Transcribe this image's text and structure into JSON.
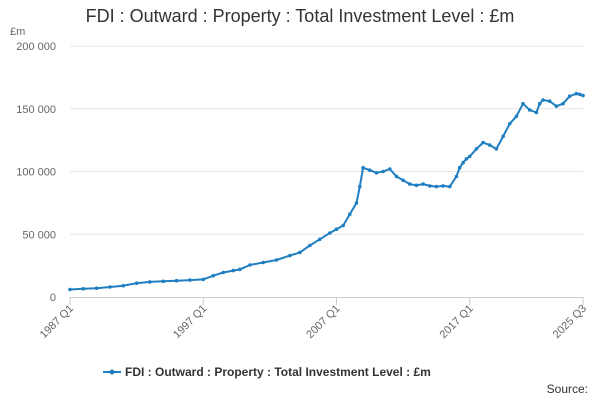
{
  "title": "FDI : Outward : Property : Total Investment Level : £m",
  "unit": "£m",
  "source": "Source:",
  "colors": {
    "series": "#1f7fc1",
    "grid": "#e6e6e6",
    "axis": "#666666"
  },
  "chart_data": {
    "type": "line",
    "title": "FDI : Outward : Property : Total Investment Level : £m",
    "ylabel": "£m",
    "xlabel": "",
    "ylim": [
      0,
      200000
    ],
    "yticks": [
      0,
      50000,
      100000,
      150000,
      200000
    ],
    "ytick_labels": [
      "0",
      "50 000",
      "100 000",
      "150 000",
      "200 000"
    ],
    "xlim": [
      1987.0,
      2025.5
    ],
    "xticks": [
      1987.0,
      1997.0,
      2007.0,
      2017.0,
      2025.5
    ],
    "xtick_labels": [
      "1987 Q1",
      "1997 Q1",
      "2007 Q1",
      "2017 Q1",
      "2025 Q3"
    ],
    "grid": true,
    "legend": "bottom-center",
    "series": [
      {
        "name": "FDI : Outward : Property : Total Investment Level : £m",
        "x": [
          1987.0,
          1988.0,
          1989.0,
          1990.0,
          1991.0,
          1992.0,
          1993.0,
          1994.0,
          1995.0,
          1996.0,
          1997.0,
          1997.75,
          1998.5,
          1999.25,
          1999.75,
          2000.5,
          2001.5,
          2002.5,
          2003.5,
          2004.25,
          2005.0,
          2005.75,
          2006.5,
          2007.0,
          2007.5,
          2008.0,
          2008.5,
          2008.75,
          2009.0,
          2009.5,
          2010.0,
          2010.5,
          2011.0,
          2011.5,
          2012.0,
          2012.5,
          2013.0,
          2013.5,
          2014.0,
          2014.5,
          2015.0,
          2015.5,
          2016.0,
          2016.25,
          2016.5,
          2016.75,
          2017.0,
          2017.5,
          2018.0,
          2018.5,
          2019.0,
          2019.5,
          2020.0,
          2020.5,
          2021.0,
          2021.5,
          2022.0,
          2022.25,
          2022.5,
          2023.0,
          2023.5,
          2024.0,
          2024.5,
          2025.0,
          2025.25,
          2025.5
        ],
        "y": [
          6000,
          6500,
          7000,
          8000,
          9000,
          11000,
          12000,
          12500,
          13000,
          13500,
          14000,
          17000,
          19500,
          21000,
          22000,
          25500,
          27500,
          29500,
          33000,
          35500,
          41000,
          46000,
          51000,
          54000,
          57000,
          66000,
          75000,
          88000,
          103000,
          101000,
          99000,
          100000,
          102000,
          96000,
          93000,
          90000,
          89000,
          90000,
          88500,
          88000,
          88500,
          88000,
          96000,
          103000,
          107000,
          110000,
          112000,
          118000,
          123000,
          121000,
          118000,
          128000,
          138000,
          144000,
          154000,
          149000,
          147000,
          154000,
          157000,
          156000,
          152000,
          154000,
          160000,
          162000,
          161500,
          160500
        ]
      }
    ]
  }
}
